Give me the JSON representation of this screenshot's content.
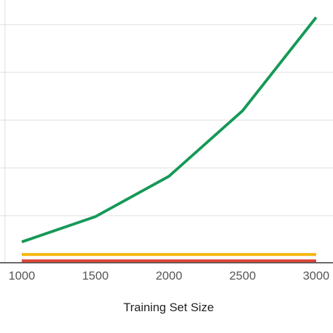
{
  "chart_data": {
    "type": "line",
    "title": "",
    "xlabel": "Training Set Size",
    "ylabel": "",
    "x": [
      1000,
      1500,
      2000,
      2500,
      3000
    ],
    "x_tick_labels": [
      "1000",
      "1500",
      "2000",
      "2500",
      "3000"
    ],
    "xlim": [
      1000,
      3000
    ],
    "ylim": [
      0,
      1
    ],
    "grid": true,
    "legend": "none",
    "series": [
      {
        "color": "#159957",
        "values": [
          0.08,
          0.18,
          0.34,
          0.6,
          0.97
        ]
      },
      {
        "color": "#f4b400",
        "values": [
          0.03,
          0.03,
          0.03,
          0.03,
          0.03
        ]
      },
      {
        "color": "#db4437",
        "values": [
          0.005,
          0.005,
          0.005,
          0.005,
          0.005
        ]
      }
    ]
  }
}
